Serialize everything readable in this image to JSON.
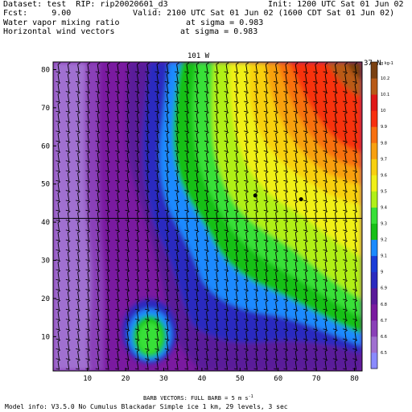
{
  "header": {
    "dataset": "Dataset: test  RIP: rip20020601_d3",
    "init": "Init: 1200 UTC Sat 01 Jun 02",
    "fcst": "Fcst:     9.00",
    "valid": "Valid: 2100 UTC Sat 01 Jun 02 (1600 CDT Sat 01 Jun 02)",
    "field1": "Water vapor mixing ratio",
    "field1_level": "at sigma = 0.983",
    "field2": "Horizontal wind vectors",
    "field2_level": "at sigma = 0.983"
  },
  "footer": {
    "barb_note": "BARB VECTORS:  FULL BARB = 5 m s",
    "barb_unit_sup": "-1",
    "model_info": "Model info: V3.5.0 No Cumulus Blackadar  Simple ice    1 km,  29 levels,     3 sec"
  },
  "chart_data": {
    "type": "heatmap",
    "title": "",
    "top_left_label": "101 W",
    "top_right_label": "37 N",
    "x_ticks": [
      10,
      20,
      30,
      40,
      50,
      60,
      70,
      80
    ],
    "y_ticks": [
      10,
      20,
      30,
      40,
      50,
      60,
      70,
      80
    ],
    "xlim": [
      1,
      82
    ],
    "ylim": [
      1,
      82
    ],
    "horizontal_line_y": 41,
    "points": [
      {
        "x": 54,
        "y": 47
      },
      {
        "x": 66,
        "y": 46
      }
    ],
    "colorbar": {
      "unit": "g kg-1",
      "levels": [
        "6.5",
        "6.6",
        "6.7",
        "6.8",
        "6.9",
        "9",
        "9.1",
        "9.2",
        "9.3",
        "9.4",
        "9.5",
        "9.6",
        "9.7",
        "9.8",
        "9.9",
        "10",
        "10.1",
        "10.2"
      ],
      "colors": [
        "#8a8aff",
        "#a070d0",
        "#8a40b8",
        "#7a1aa0",
        "#5a1a9a",
        "#2a2ac0",
        "#1a3cd8",
        "#1a8aff",
        "#18c018",
        "#38e038",
        "#b0f018",
        "#f0f018",
        "#f8d010",
        "#f8a010",
        "#f87010",
        "#f83010",
        "#e01818",
        "#b85a18",
        "#7a4010"
      ]
    }
  }
}
